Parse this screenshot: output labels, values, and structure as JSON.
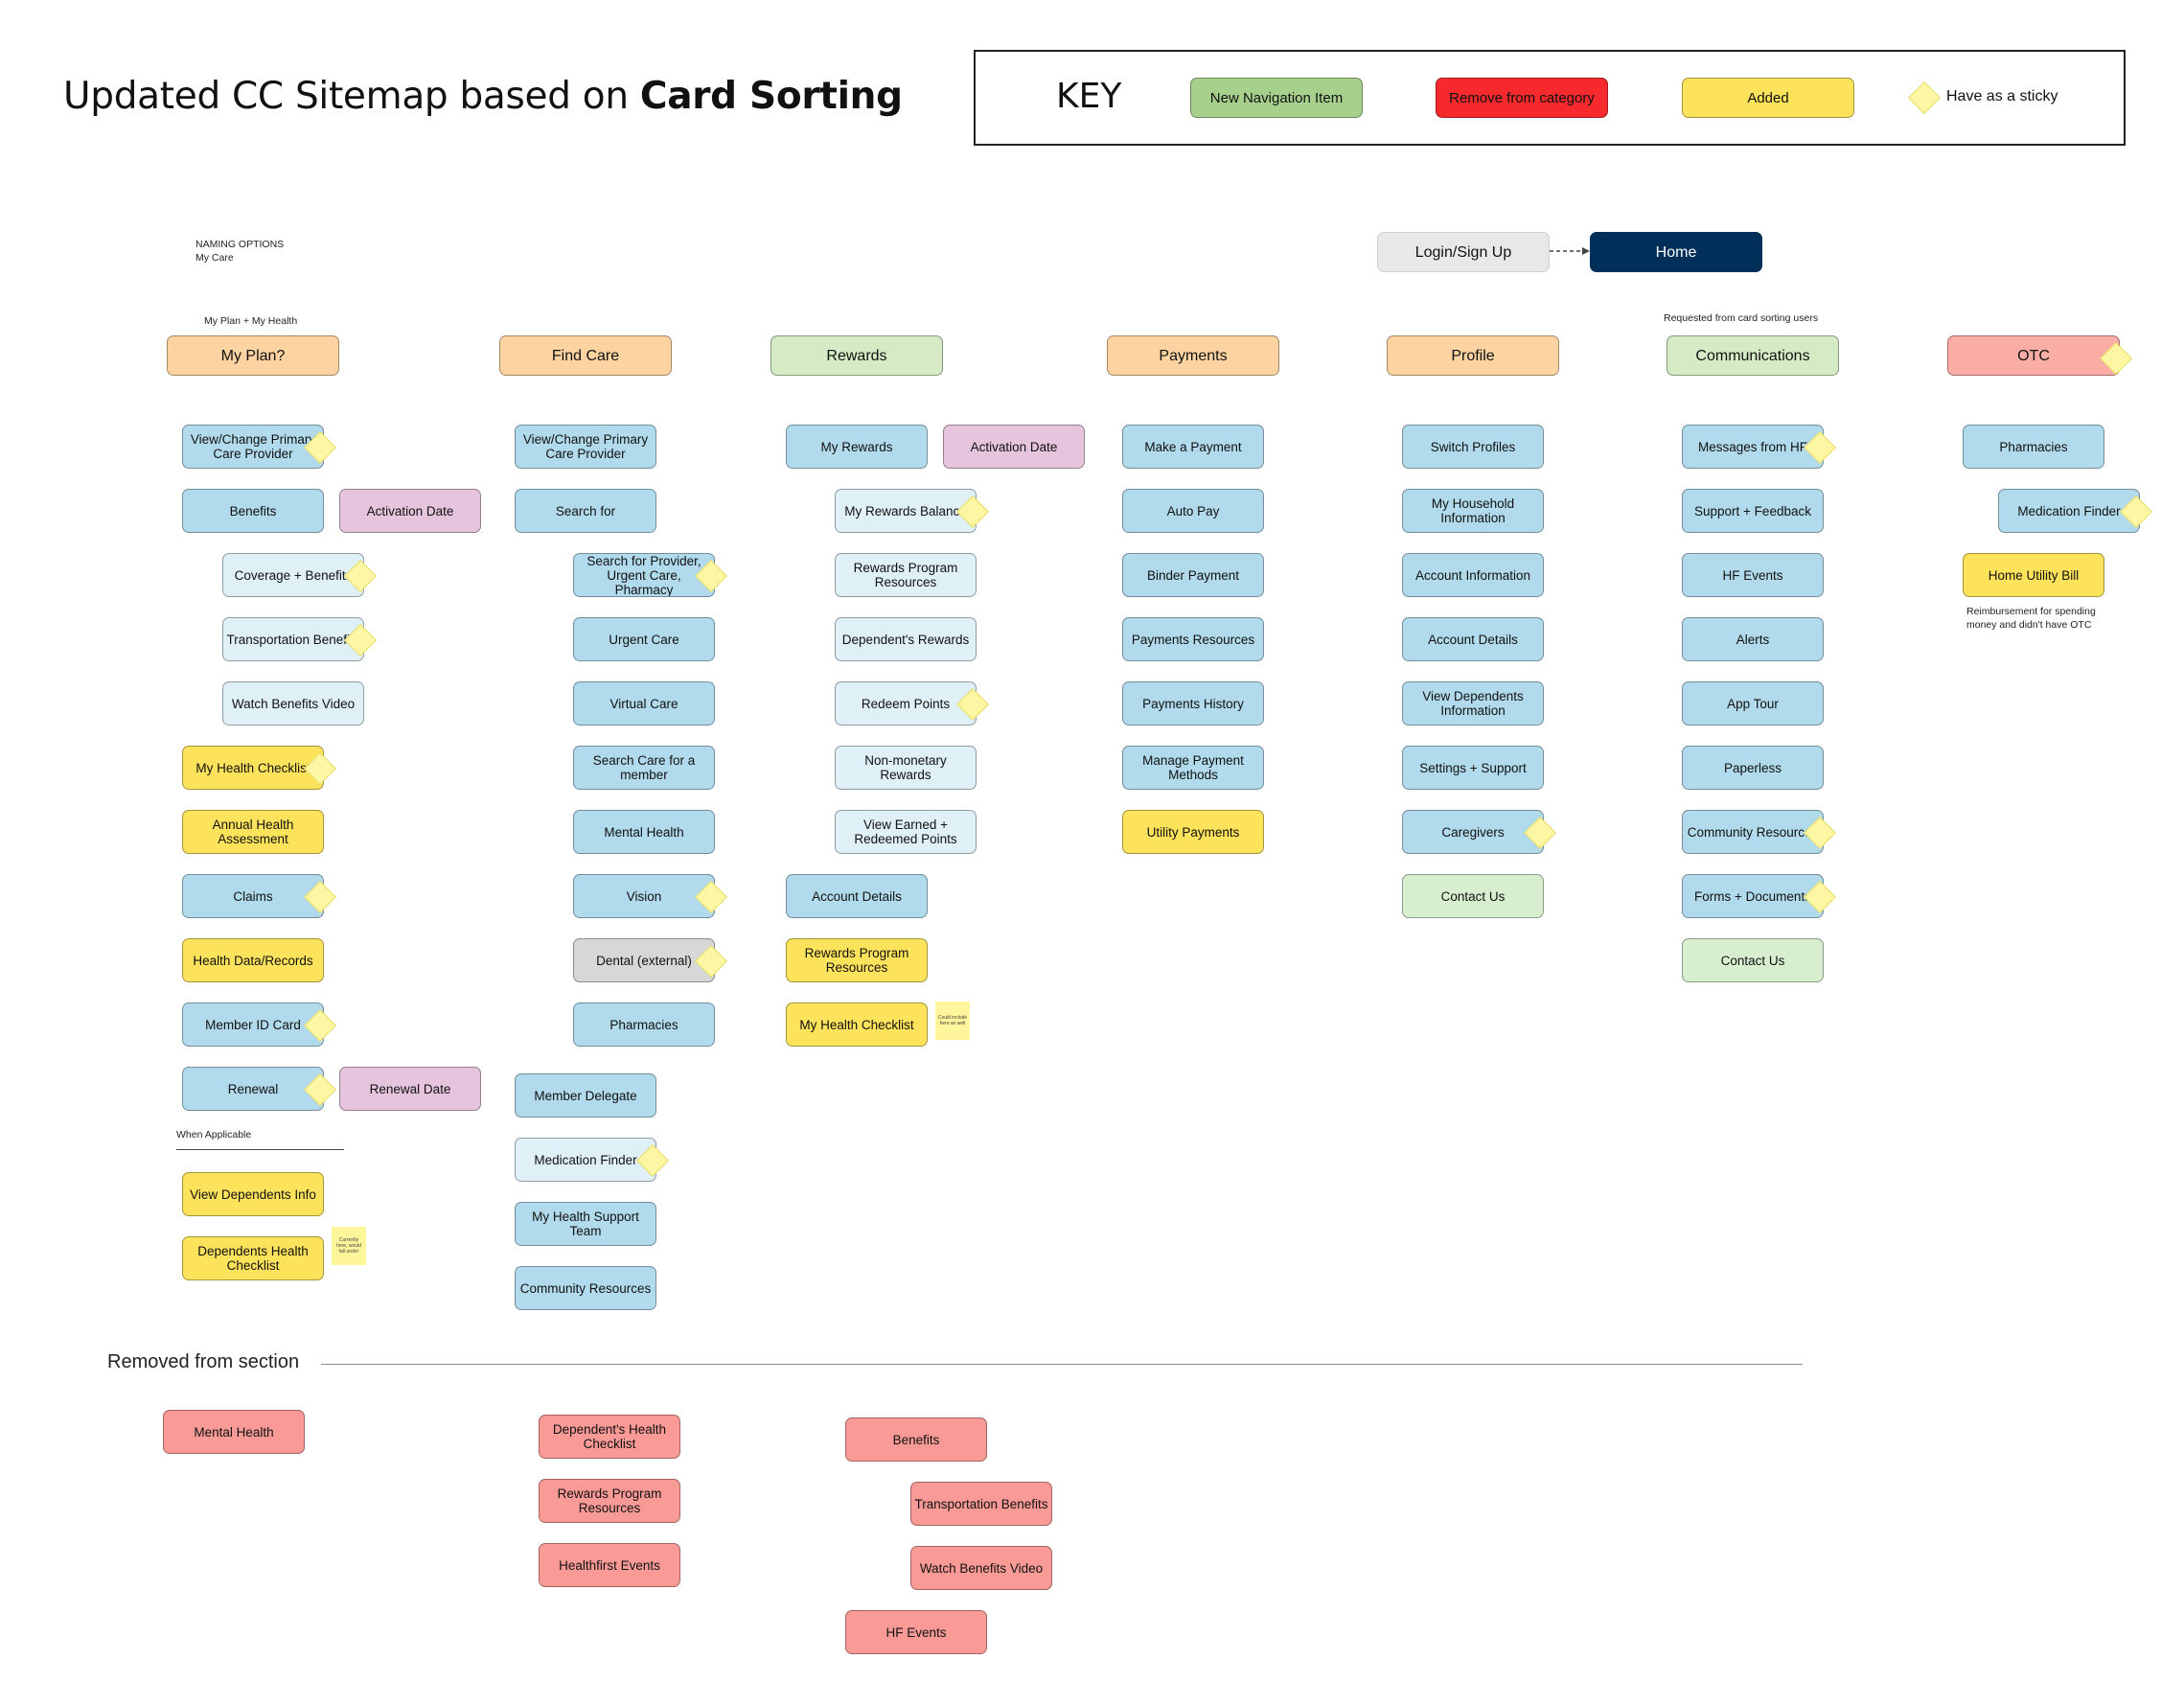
{
  "title": {
    "plain": "Updated CC Sitemap based on ",
    "bold": "Card Sorting"
  },
  "key": {
    "title": "KEY",
    "items": [
      {
        "label": "New Navigation Item",
        "color": "#a8d08d"
      },
      {
        "label": "Remove from category",
        "color": "#f6292c"
      },
      {
        "label": "Added",
        "color": "#fde35b"
      }
    ],
    "sticky_label": "Have as a sticky"
  },
  "colors": {
    "blue": "#b1dbec",
    "lightblue": "#dff0f7",
    "yellow": "#fde35b",
    "pink": "#e6c4dd",
    "grey": "#d7d7d7",
    "green_light": "#d8efcf",
    "peach": "#fdd3a2",
    "green_cat": "#d4ebc6",
    "red_cat": "#f9ada4",
    "removed": "#fa9a96",
    "sticky": "#fdf6a3"
  },
  "notes": {
    "naming_options": "NAMING OPTIONS",
    "my_care": "My Care",
    "my_plan_health": "My Plan + My Health",
    "requested": "Requested from card sorting users",
    "when_applicable": "When Applicable",
    "reimbursement": "Reimbursement for spending money and didn't have OTC",
    "sticky_dependents": "Currently here, would fall under",
    "sticky_checklist": "Could include here as well"
  },
  "nav": {
    "login": "Login/Sign Up",
    "home": "Home"
  },
  "categories": [
    {
      "label": "My Plan?",
      "color": "peach"
    },
    {
      "label": "Find Care",
      "color": "peach"
    },
    {
      "label": "Rewards",
      "color": "green_cat"
    },
    {
      "label": "Payments",
      "color": "peach"
    },
    {
      "label": "Profile",
      "color": "peach"
    },
    {
      "label": "Communications",
      "color": "green_cat"
    },
    {
      "label": "OTC",
      "color": "red_cat"
    }
  ],
  "nodes": {
    "myplan": [
      {
        "label": "View/Change Primary Care Provider",
        "color": "blue",
        "sticky": true
      },
      {
        "label": "Benefits",
        "color": "blue"
      },
      {
        "label": "Activation Date",
        "color": "pink"
      },
      {
        "label": "Coverage + Benefits",
        "color": "lightblue",
        "sticky": true
      },
      {
        "label": "Transportation Benefits",
        "color": "lightblue",
        "sticky": true
      },
      {
        "label": "Watch Benefits Video",
        "color": "lightblue"
      },
      {
        "label": "My Health Checklist",
        "color": "yellow",
        "sticky": true
      },
      {
        "label": "Annual Health Assessment",
        "color": "yellow"
      },
      {
        "label": "Claims",
        "color": "blue",
        "sticky": true
      },
      {
        "label": "Health Data/Records",
        "color": "yellow"
      },
      {
        "label": "Member ID Card",
        "color": "blue",
        "sticky": true
      },
      {
        "label": "Renewal",
        "color": "blue",
        "sticky": true
      },
      {
        "label": "Renewal Date",
        "color": "pink"
      },
      {
        "label": "View Dependents Info",
        "color": "yellow"
      },
      {
        "label": "Dependents Health Checklist",
        "color": "yellow"
      }
    ],
    "findcare": [
      {
        "label": "View/Change Primary Care Provider",
        "color": "blue"
      },
      {
        "label": "Search for",
        "color": "blue"
      },
      {
        "label": "Search for Provider, Urgent Care, Pharmacy",
        "color": "blue",
        "sticky": true
      },
      {
        "label": "Urgent Care",
        "color": "blue"
      },
      {
        "label": "Virtual Care",
        "color": "blue"
      },
      {
        "label": "Search Care for a member",
        "color": "blue"
      },
      {
        "label": "Mental Health",
        "color": "blue"
      },
      {
        "label": "Vision",
        "color": "blue",
        "sticky": true
      },
      {
        "label": "Dental (external)",
        "color": "grey",
        "sticky": true
      },
      {
        "label": "Pharmacies",
        "color": "blue"
      },
      {
        "label": "Member Delegate",
        "color": "blue"
      },
      {
        "label": "Medication Finder",
        "color": "lightblue",
        "sticky": true
      },
      {
        "label": "My Health Support Team",
        "color": "blue"
      },
      {
        "label": "Community Resources",
        "color": "blue"
      }
    ],
    "rewards": [
      {
        "label": "My Rewards",
        "color": "blue"
      },
      {
        "label": "Activation Date",
        "color": "pink"
      },
      {
        "label": "My Rewards Balance",
        "color": "lightblue",
        "sticky": true
      },
      {
        "label": "Rewards Program Resources",
        "color": "lightblue"
      },
      {
        "label": "Dependent's Rewards",
        "color": "lightblue"
      },
      {
        "label": "Redeem Points",
        "color": "lightblue",
        "sticky": true
      },
      {
        "label": "Non-monetary Rewards",
        "color": "lightblue"
      },
      {
        "label": "View Earned + Redeemed Points",
        "color": "lightblue"
      },
      {
        "label": "Account Details",
        "color": "blue"
      },
      {
        "label": "Rewards Program Resources",
        "color": "yellow"
      },
      {
        "label": "My Health Checklist",
        "color": "yellow"
      }
    ],
    "payments": [
      {
        "label": "Make a Payment",
        "color": "blue"
      },
      {
        "label": "Auto Pay",
        "color": "blue"
      },
      {
        "label": "Binder Payment",
        "color": "blue"
      },
      {
        "label": "Payments Resources",
        "color": "blue"
      },
      {
        "label": "Payments History",
        "color": "blue"
      },
      {
        "label": "Manage Payment Methods",
        "color": "blue"
      },
      {
        "label": "Utility Payments",
        "color": "yellow"
      }
    ],
    "profile": [
      {
        "label": "Switch Profiles",
        "color": "blue"
      },
      {
        "label": "My Household Information",
        "color": "blue"
      },
      {
        "label": "Account Information",
        "color": "blue"
      },
      {
        "label": "Account Details",
        "color": "blue"
      },
      {
        "label": "View Dependents Information",
        "color": "blue"
      },
      {
        "label": "Settings + Support",
        "color": "blue"
      },
      {
        "label": "Caregivers",
        "color": "blue",
        "sticky": true
      },
      {
        "label": "Contact Us",
        "color": "green_light"
      }
    ],
    "communications": [
      {
        "label": "Messages from HF",
        "color": "blue",
        "sticky": true
      },
      {
        "label": "Support + Feedback",
        "color": "blue"
      },
      {
        "label": "HF Events",
        "color": "blue"
      },
      {
        "label": "Alerts",
        "color": "blue"
      },
      {
        "label": "App Tour",
        "color": "blue"
      },
      {
        "label": "Paperless",
        "color": "blue"
      },
      {
        "label": "Community Resources",
        "color": "blue",
        "sticky": true
      },
      {
        "label": "Forms + Documents",
        "color": "blue",
        "sticky": true
      },
      {
        "label": "Contact Us",
        "color": "green_light"
      }
    ],
    "otc": [
      {
        "label": "Pharmacies",
        "color": "blue"
      },
      {
        "label": "Medication Finder",
        "color": "blue",
        "sticky": true
      },
      {
        "label": "Home Utility Bill",
        "color": "yellow"
      }
    ]
  },
  "removed": {
    "title": "Removed from section",
    "items": [
      {
        "label": "Mental Health"
      },
      {
        "label": "Dependent's Health Checklist"
      },
      {
        "label": "Rewards Program Resources"
      },
      {
        "label": "Healthfirst Events"
      },
      {
        "label": "Benefits"
      },
      {
        "label": "Transportation Benefits"
      },
      {
        "label": "Watch Benefits Video"
      },
      {
        "label": "HF Events"
      }
    ]
  }
}
